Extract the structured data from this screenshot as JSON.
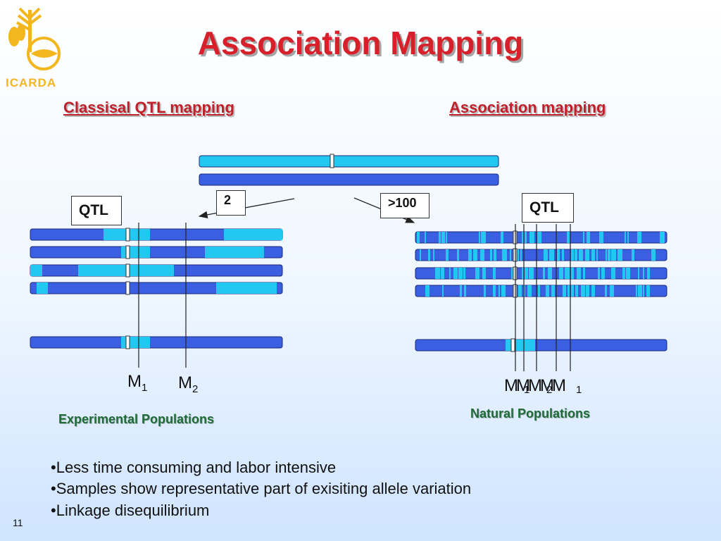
{
  "logo": {
    "text": "ICARDA"
  },
  "title": "Association Mapping",
  "left_heading": "Classisal QTL mapping",
  "right_heading": "Association mapping",
  "left_qtl": "QTL",
  "right_qtl": "QTL",
  "count_left": "2",
  "count_right": ">100",
  "left_markers": [
    "M",
    "1",
    "M",
    "2"
  ],
  "right_markers": "MMMMM",
  "right_subs": [
    "1",
    "2",
    "1"
  ],
  "left_population": "Experimental Populations",
  "right_population": "Natural Populations",
  "bullets": [
    "•Less time consuming and labor intensive",
    "•Samples show representative part of exisiting allele variation",
    "•Linkage disequilibrium"
  ],
  "page_number": "11",
  "colors": {
    "dark_blue": "#3a5fe0",
    "light_blue": "#22c8ef",
    "title_red": "#d8202a",
    "green_text": "#1f6b36"
  }
}
